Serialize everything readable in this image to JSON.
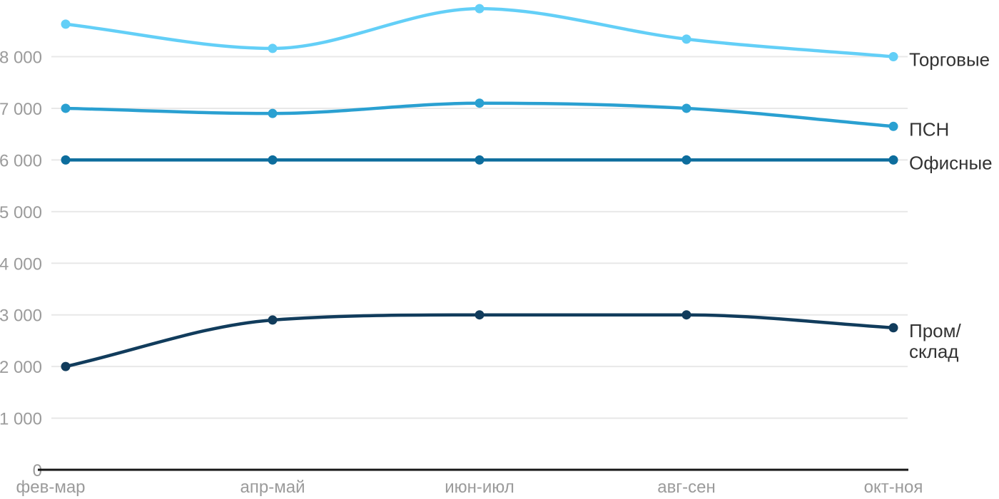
{
  "chart_data": {
    "type": "line",
    "title": "",
    "xlabel": "",
    "ylabel": "",
    "categories": [
      "фев-мар",
      "апр-май",
      "июн-июл",
      "авг-сен",
      "окт-ноя"
    ],
    "series": [
      {
        "name": "Торговые",
        "label_lines": [
          "Торговые"
        ],
        "color": "#63CFF7",
        "values": [
          8630,
          8160,
          8930,
          8340,
          8000
        ]
      },
      {
        "name": "ПСН",
        "label_lines": [
          "ПСН"
        ],
        "color": "#2AA0D1",
        "values": [
          7000,
          6900,
          7100,
          7000,
          6650
        ]
      },
      {
        "name": "Офисные",
        "label_lines": [
          "Офисные"
        ],
        "color": "#0D6D9D",
        "values": [
          6000,
          6000,
          6000,
          6000,
          6000
        ]
      },
      {
        "name": "Пром/склад",
        "label_lines": [
          "Пром/",
          "склад"
        ],
        "color": "#113C5C",
        "values": [
          2000,
          2900,
          3000,
          3000,
          2750
        ]
      }
    ],
    "y_ticks": [
      {
        "value": 0,
        "label": "0"
      },
      {
        "value": 1000,
        "label": "1 000"
      },
      {
        "value": 2000,
        "label": "2 000"
      },
      {
        "value": 3000,
        "label": "3 000"
      },
      {
        "value": 4000,
        "label": "4 000"
      },
      {
        "value": 5000,
        "label": "5 000"
      },
      {
        "value": 6000,
        "label": "6 000"
      },
      {
        "value": 7000,
        "label": "7 000"
      },
      {
        "value": 8000,
        "label": "8 000"
      }
    ],
    "ylim": [
      0,
      9000
    ],
    "grid": "horizontal-only",
    "legend_position": "inline-right-of-line-ends",
    "curve": "smooth-monotone"
  },
  "colors": {
    "background": "#FFFFFF",
    "grid": "#E8E8E8",
    "axis": "#161616",
    "tick_label": "#9B9B9B",
    "series_label": "#333333"
  }
}
